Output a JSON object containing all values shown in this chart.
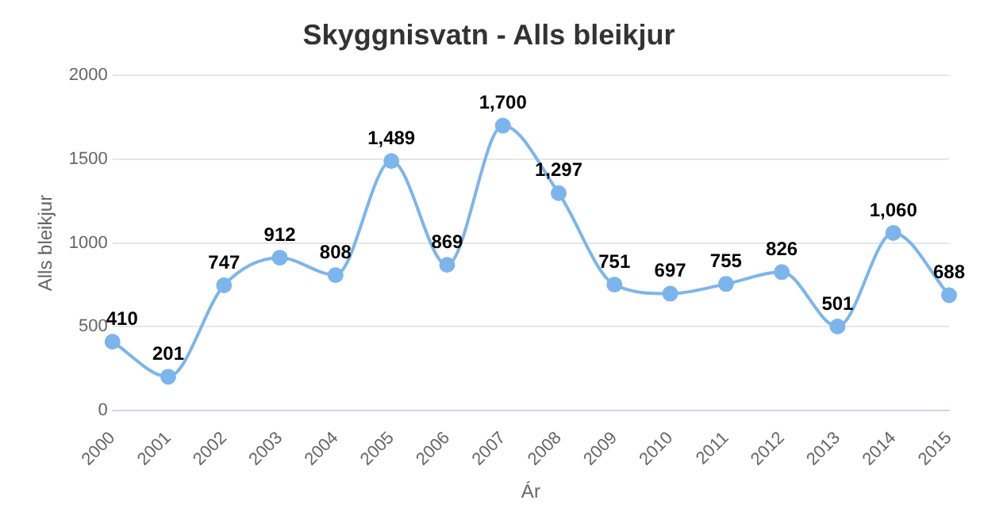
{
  "chart_data": {
    "type": "line",
    "title": "Skyggnisvatn - Alls bleikjur",
    "xlabel": "Ár",
    "ylabel": "Alls bleikjur",
    "categories": [
      "2000",
      "2001",
      "2002",
      "2003",
      "2004",
      "2005",
      "2006",
      "2007",
      "2008",
      "2009",
      "2010",
      "2011",
      "2012",
      "2013",
      "2014",
      "2015"
    ],
    "series": [
      {
        "color": "#7cb5ec",
        "values": [
          410,
          201,
          747,
          912,
          808,
          1489,
          869,
          1700,
          1297,
          751,
          697,
          755,
          826,
          501,
          1060,
          688
        ],
        "value_labels": [
          "410",
          "201",
          "747",
          "912",
          "808",
          "1,489",
          "869",
          "1,700",
          "1,297",
          "751",
          "697",
          "755",
          "826",
          "501",
          "1,060",
          "688"
        ]
      }
    ],
    "ylim": [
      0,
      2000
    ],
    "yticks": [
      0,
      500,
      1000,
      1500,
      2000
    ],
    "grid": "y",
    "legend": false,
    "marker": "circle",
    "line_style": "solid"
  }
}
